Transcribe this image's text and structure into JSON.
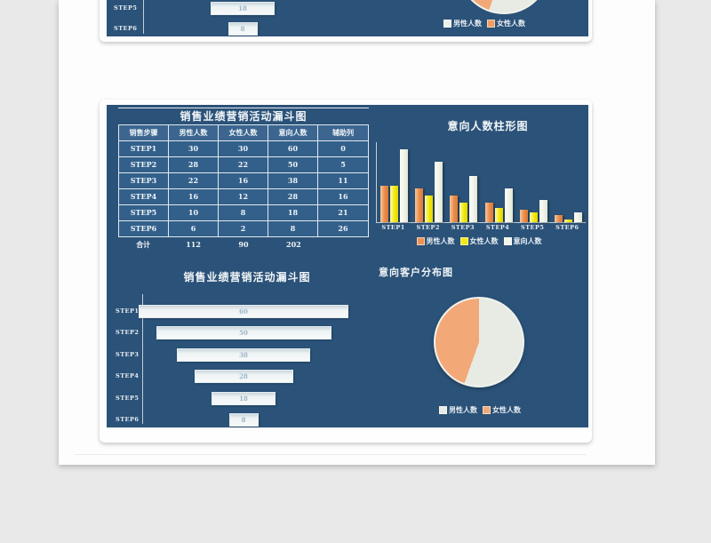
{
  "theme": {
    "panel_bg": "#2b5278",
    "male_color": "#ec9254",
    "female_color": "#f2e818",
    "intent_color": "#f1f4ea",
    "pie_male_color": "#e7ebe3",
    "pie_female_color": "#f3a877"
  },
  "top_panel": {
    "funnel_rows": [
      {
        "label": "STEP5",
        "value": 18
      },
      {
        "label": "STEP6",
        "value": 8
      }
    ],
    "legend": [
      {
        "label": "男性人数",
        "color": "#eef1ea"
      },
      {
        "label": "女性人数",
        "color": "#ef9e63"
      }
    ]
  },
  "table": {
    "title": "销售业绩营销活动漏斗图",
    "headers": [
      "销售步骤",
      "男性人数",
      "女性人数",
      "意向人数",
      "辅助列"
    ],
    "rows": [
      [
        "STEP1",
        "30",
        "30",
        "60",
        "0"
      ],
      [
        "STEP2",
        "28",
        "22",
        "50",
        "5"
      ],
      [
        "STEP3",
        "22",
        "16",
        "38",
        "11"
      ],
      [
        "STEP4",
        "16",
        "12",
        "28",
        "16"
      ],
      [
        "STEP5",
        "10",
        "8",
        "18",
        "21"
      ],
      [
        "STEP6",
        "6",
        "2",
        "8",
        "26"
      ]
    ],
    "total": [
      "合计",
      "112",
      "90",
      "202",
      ""
    ]
  },
  "chart_data": [
    {
      "type": "bar",
      "title": "意向人数柱形图",
      "categories": [
        "STEP1",
        "STEP2",
        "STEP3",
        "STEP4",
        "STEP5",
        "STEP6"
      ],
      "series": [
        {
          "name": "男性人数",
          "color": "#ec9254",
          "values": [
            30,
            28,
            22,
            16,
            10,
            6
          ]
        },
        {
          "name": "女性人数",
          "color": "#f2e818",
          "values": [
            30,
            22,
            16,
            12,
            8,
            2
          ]
        },
        {
          "name": "意向人数",
          "color": "#f1f4ea",
          "values": [
            60,
            50,
            38,
            28,
            18,
            8
          ]
        }
      ],
      "ylim": [
        0,
        60
      ],
      "grid": false,
      "legend_position": "bottom"
    },
    {
      "type": "bar",
      "subtype": "funnel",
      "orientation": "horizontal-centered",
      "title": "销售业绩营销活动漏斗图",
      "categories": [
        "STEP1",
        "STEP2",
        "STEP3",
        "STEP4",
        "STEP5",
        "STEP6"
      ],
      "values": [
        60,
        50,
        38,
        28,
        18,
        8
      ]
    },
    {
      "type": "pie",
      "title": "意向客户分布图",
      "labels": [
        "男性人数",
        "女性人数"
      ],
      "values": [
        112,
        90
      ],
      "colors": [
        "#e7ebe3",
        "#f3a877"
      ],
      "legend_position": "bottom"
    }
  ]
}
